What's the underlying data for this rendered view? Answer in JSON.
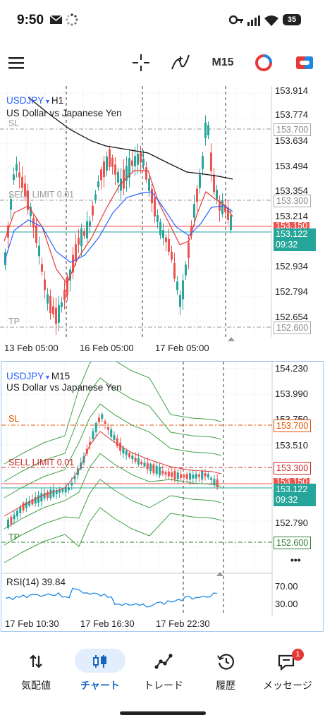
{
  "status_bar": {
    "time": "9:50",
    "battery": "35"
  },
  "toolbar": {
    "timeframe": "M15",
    "icons": [
      "menu-icon",
      "crosshair-icon",
      "indicator-icon",
      "timeframe",
      "objects-icon",
      "trade-icon"
    ]
  },
  "colors": {
    "bull": "#26a69a",
    "bear": "#ef5350",
    "accent_blue": "#2962ff",
    "sl_label": "#e65100",
    "sell_limit": "#c62828",
    "tp_green": "#2e7d32",
    "bid_box": "#26a69a"
  },
  "chart_top": {
    "symbol": "USDJPY",
    "timeframe": "H1",
    "description": "US Dollar vs Japanese Yen",
    "price_labels": [
      "153.914",
      "153.774",
      "153.634",
      "153.494",
      "153.354",
      "153.214",
      "152.934",
      "152.794",
      "152.654"
    ],
    "sl_price": "153.700",
    "sell_limit_price": "153.300",
    "ask_price_partial": "153.150",
    "bid_price": "153.122",
    "countdown": "09:32",
    "tp_price": "152.600",
    "sl_label": "SL",
    "sell_limit_label": "SELL LIMIT 0.01",
    "tp_label": "TP",
    "time_labels": [
      "13 Feb 05:00",
      "16 Feb 05:00",
      "17 Feb 05:00"
    ]
  },
  "chart_bottom": {
    "symbol": "USDJPY",
    "timeframe": "M15",
    "description": "US Dollar vs Japanese Yen",
    "price_labels": [
      "154.230",
      "153.990",
      "153.750",
      "153.510",
      "152.790"
    ],
    "sl_price": "153.700",
    "sell_limit_price": "153.300",
    "ask_price_partial": "153.150",
    "bid_price": "153.122",
    "countdown": "09:32",
    "tp_price": "152.600",
    "sl_label": "SL",
    "sell_limit_label": "SELL LIMIT 0.01",
    "tp_label": "TP",
    "rsi_label": "RSI(14) 39.84",
    "rsi_levels": [
      "70.00",
      "30.00"
    ],
    "more_glyph": "•••",
    "time_labels": [
      "17 Feb 10:30",
      "17 Feb 16:30",
      "17 Feb 22:30"
    ]
  },
  "bottom_nav": {
    "items": [
      {
        "label": "気配値",
        "icon": "quotes-icon"
      },
      {
        "label": "チャート",
        "icon": "chart-icon"
      },
      {
        "label": "トレード",
        "icon": "trade-icon"
      },
      {
        "label": "履歴",
        "icon": "history-icon"
      },
      {
        "label": "メッセージ",
        "icon": "messages-icon"
      }
    ],
    "active_index": 1,
    "message_badge": "1"
  }
}
